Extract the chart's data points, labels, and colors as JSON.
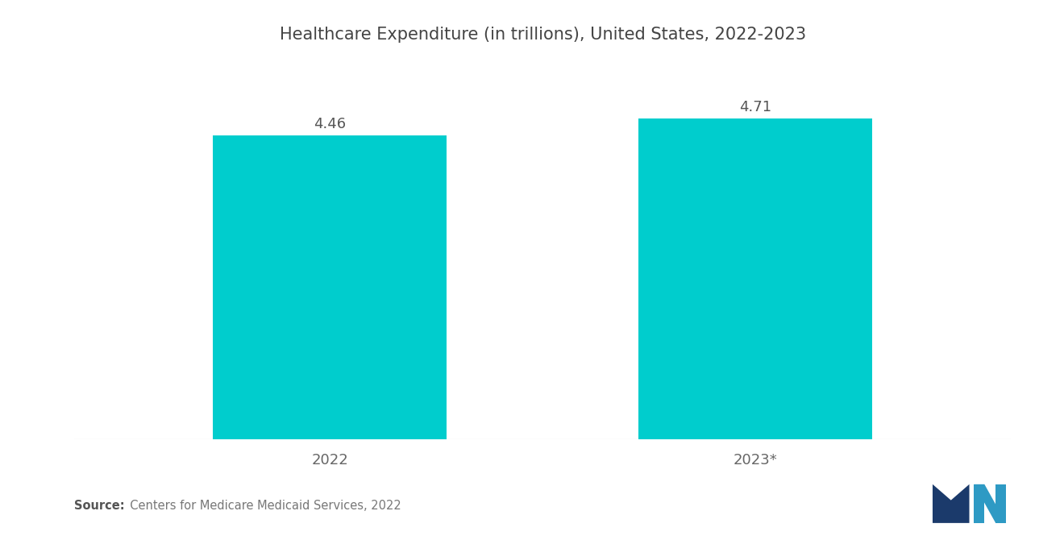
{
  "title": "Healthcare Expenditure (in trillions), United States, 2022-2023",
  "categories": [
    "2022",
    "2023*"
  ],
  "values": [
    4.46,
    4.71
  ],
  "bar_color": "#00CDCD",
  "value_labels": [
    "4.46",
    "4.71"
  ],
  "ylim": [
    0,
    5.5
  ],
  "background_color": "#ffffff",
  "title_fontsize": 15,
  "label_fontsize": 13,
  "value_fontsize": 13,
  "source_bold": "Source:",
  "source_normal": "  Centers for Medicare Medicaid Services, 2022",
  "bar_width": 0.55,
  "x_positions": [
    1,
    2
  ],
  "xlim": [
    0.4,
    2.6
  ]
}
